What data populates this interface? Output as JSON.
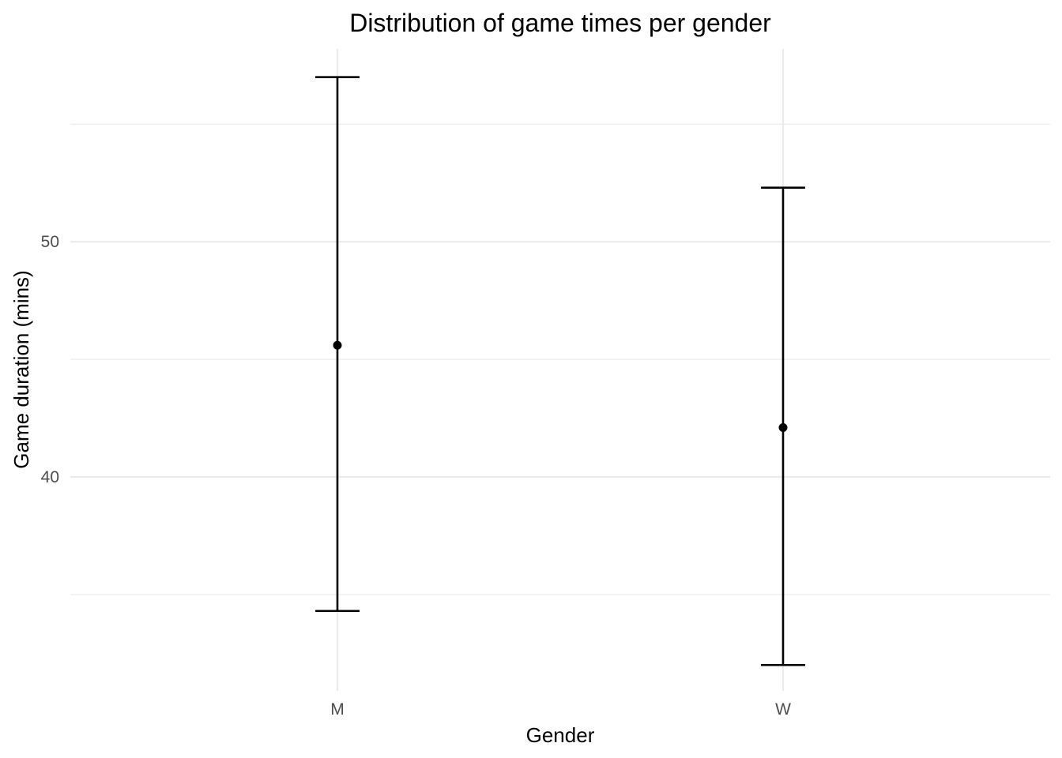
{
  "chart_data": {
    "type": "errorbar",
    "title": "Distribution of game times per gender",
    "xlabel": "Gender",
    "ylabel": "Game duration (mins)",
    "categories": [
      "M",
      "W"
    ],
    "mean": [
      45.6,
      42.1
    ],
    "lower": [
      34.3,
      32.0
    ],
    "upper": [
      57.0,
      52.3
    ],
    "ylim": [
      30.9,
      58.2
    ],
    "yticks": [
      40,
      50
    ],
    "y_minor_gridlines": [
      35,
      45,
      55
    ],
    "grid": true,
    "legend": "none",
    "colors": {
      "marks": "#000000",
      "grid": "#ebebeb",
      "tick_text": "#4d4d4d",
      "background": "#ffffff"
    }
  }
}
